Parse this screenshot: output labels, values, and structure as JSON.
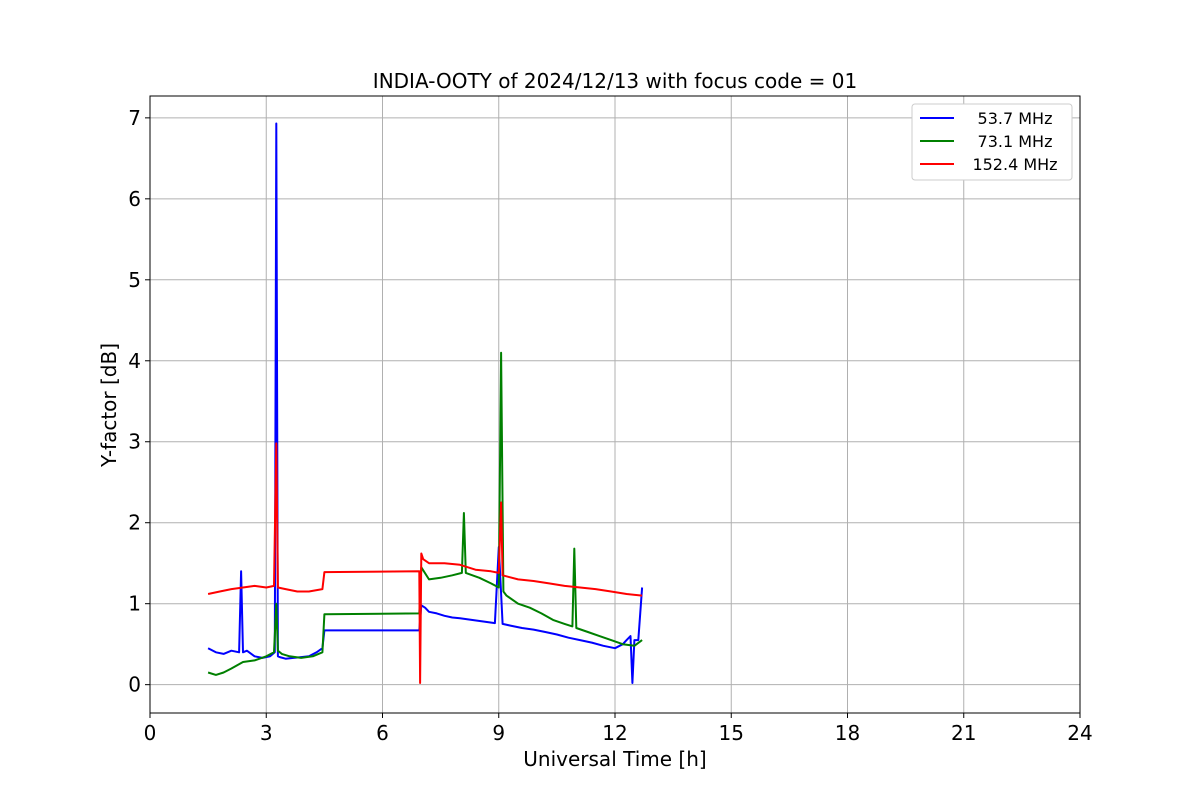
{
  "chart_data": {
    "type": "line",
    "title": "INDIA-OOTY of 2024/12/13 with focus code = 01",
    "xlabel": "Universal Time [h]",
    "ylabel": "Y-factor [dB]",
    "xlim": [
      0,
      24
    ],
    "ylim": [
      -0.35,
      7.27
    ],
    "xticks": [
      "0",
      "3",
      "6",
      "9",
      "12",
      "15",
      "18",
      "21",
      "24"
    ],
    "yticks": [
      "0",
      "1",
      "2",
      "3",
      "4",
      "5",
      "6",
      "7"
    ],
    "grid": true,
    "legend_position": "top-right",
    "series": [
      {
        "name": "53.7 MHz",
        "color": "#0000ff",
        "x": [
          1.5,
          1.7,
          1.9,
          2.1,
          2.3,
          2.35,
          2.4,
          2.5,
          2.7,
          2.9,
          3.1,
          3.22,
          3.26,
          3.3,
          3.35,
          3.5,
          3.7,
          3.9,
          4.1,
          4.3,
          4.45,
          4.5,
          6.95,
          7.0,
          7.1,
          7.2,
          7.4,
          7.6,
          7.8,
          8.0,
          8.3,
          8.6,
          8.9,
          9.0,
          9.1,
          9.3,
          9.6,
          9.9,
          10.2,
          10.5,
          10.8,
          11.1,
          11.4,
          11.7,
          12.0,
          12.2,
          12.3,
          12.4,
          12.45,
          12.5,
          12.6,
          12.7
        ],
        "y": [
          0.45,
          0.4,
          0.38,
          0.42,
          0.4,
          1.4,
          0.4,
          0.42,
          0.35,
          0.33,
          0.35,
          0.4,
          6.93,
          0.35,
          0.34,
          0.32,
          0.33,
          0.34,
          0.35,
          0.4,
          0.45,
          0.67,
          0.67,
          0.98,
          0.95,
          0.9,
          0.88,
          0.85,
          0.83,
          0.82,
          0.8,
          0.78,
          0.76,
          1.7,
          0.75,
          0.73,
          0.7,
          0.68,
          0.65,
          0.62,
          0.58,
          0.55,
          0.52,
          0.48,
          0.45,
          0.5,
          0.55,
          0.6,
          0.02,
          0.55,
          0.55,
          1.2
        ]
      },
      {
        "name": "73.1 MHz",
        "color": "#008000",
        "x": [
          1.5,
          1.7,
          1.9,
          2.1,
          2.4,
          2.7,
          3.0,
          3.2,
          3.26,
          3.3,
          3.4,
          3.6,
          3.9,
          4.2,
          4.45,
          4.5,
          6.95,
          7.0,
          7.2,
          7.5,
          7.8,
          8.05,
          8.1,
          8.15,
          8.5,
          8.8,
          9.0,
          9.06,
          9.12,
          9.2,
          9.5,
          9.8,
          10.1,
          10.4,
          10.7,
          10.9,
          10.95,
          11.0,
          11.3,
          11.6,
          11.9,
          12.2,
          12.5,
          12.7
        ],
        "y": [
          0.15,
          0.12,
          0.15,
          0.2,
          0.28,
          0.3,
          0.35,
          0.4,
          1.0,
          0.42,
          0.38,
          0.35,
          0.33,
          0.35,
          0.4,
          0.87,
          0.88,
          1.45,
          1.3,
          1.32,
          1.35,
          1.38,
          2.12,
          1.38,
          1.32,
          1.25,
          1.2,
          4.1,
          1.15,
          1.1,
          1.0,
          0.95,
          0.88,
          0.8,
          0.75,
          0.72,
          1.68,
          0.7,
          0.65,
          0.6,
          0.55,
          0.5,
          0.48,
          0.55
        ]
      },
      {
        "name": "152.4 MHz",
        "color": "#ff0000",
        "x": [
          1.5,
          1.8,
          2.1,
          2.4,
          2.7,
          3.0,
          3.2,
          3.26,
          3.3,
          3.5,
          3.8,
          4.1,
          4.45,
          4.5,
          6.95,
          6.97,
          7.0,
          7.05,
          7.2,
          7.6,
          8.0,
          8.4,
          8.8,
          9.0,
          9.06,
          9.1,
          9.5,
          9.9,
          10.3,
          10.7,
          11.1,
          11.5,
          11.9,
          12.3,
          12.7
        ],
        "y": [
          1.12,
          1.15,
          1.18,
          1.2,
          1.22,
          1.2,
          1.22,
          2.98,
          1.2,
          1.18,
          1.15,
          1.15,
          1.18,
          1.39,
          1.4,
          0.02,
          1.62,
          1.55,
          1.5,
          1.5,
          1.48,
          1.42,
          1.4,
          1.38,
          2.25,
          1.35,
          1.3,
          1.28,
          1.25,
          1.22,
          1.2,
          1.18,
          1.15,
          1.12,
          1.1
        ]
      }
    ]
  }
}
